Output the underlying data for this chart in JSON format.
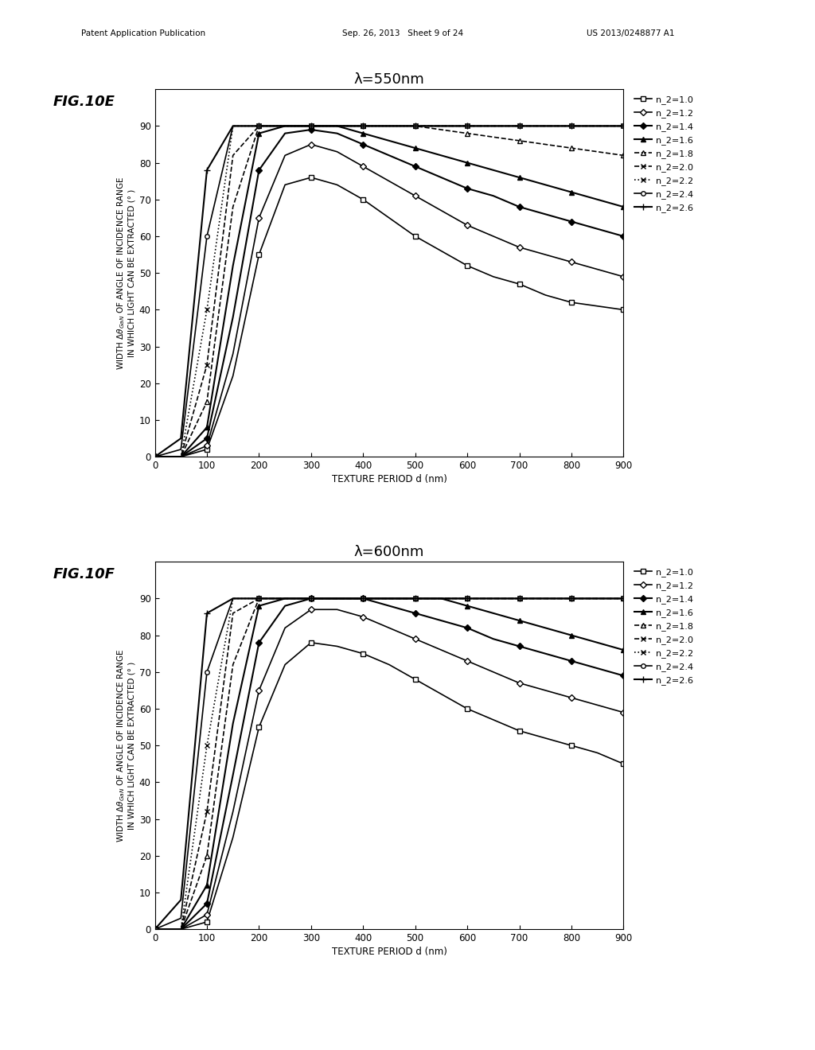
{
  "fig_label_E": "FIG.10E",
  "fig_label_F": "FIG.10F",
  "title_E": "λ=550nm",
  "title_F": "λ=600nm",
  "xlabel": "TEXTURE PERIOD d (nm)",
  "ylabel": "WIDTH ΔθGaN OF ANGLE OF INCIDENCE RANGE\nIN WHICH LIGHT CAN BE EXTRACTED (° )",
  "xlim": [
    0,
    900
  ],
  "ylim": [
    0,
    100
  ],
  "yticks": [
    0,
    10,
    20,
    30,
    40,
    50,
    60,
    70,
    80,
    90
  ],
  "xticks": [
    0,
    100,
    200,
    300,
    400,
    500,
    600,
    700,
    800,
    900
  ],
  "legend_labels": [
    "n_2=1.0",
    "n_2=1.2",
    "n_2=1.4",
    "n_2=1.6",
    "n_2=1.8",
    "n_2=2.0",
    "n_2=2.2",
    "n_2=2.4",
    "n_2=2.6"
  ],
  "header_left": "Patent Application Publication",
  "header_mid": "Sep. 26, 2013   Sheet 9 of 24",
  "header_right": "US 2013/0248877 A1",
  "x_points": [
    0,
    50,
    100,
    150,
    200,
    250,
    300,
    350,
    400,
    450,
    500,
    550,
    600,
    650,
    700,
    750,
    800,
    850,
    900
  ],
  "series_E": {
    "n10": [
      0,
      0,
      2,
      22,
      55,
      74,
      76,
      74,
      70,
      65,
      60,
      56,
      52,
      49,
      47,
      44,
      42,
      41,
      40
    ],
    "n12": [
      0,
      0,
      3,
      28,
      65,
      82,
      85,
      83,
      79,
      75,
      71,
      67,
      63,
      60,
      57,
      55,
      53,
      51,
      49
    ],
    "n14": [
      0,
      0,
      5,
      38,
      78,
      88,
      89,
      88,
      85,
      82,
      79,
      76,
      73,
      71,
      68,
      66,
      64,
      62,
      60
    ],
    "n16": [
      0,
      0,
      8,
      52,
      88,
      90,
      90,
      90,
      88,
      86,
      84,
      82,
      80,
      78,
      76,
      74,
      72,
      70,
      68
    ],
    "n18": [
      0,
      0,
      15,
      68,
      90,
      90,
      90,
      90,
      90,
      90,
      90,
      89,
      88,
      87,
      86,
      85,
      84,
      83,
      82
    ],
    "n20": [
      0,
      0,
      25,
      82,
      90,
      90,
      90,
      90,
      90,
      90,
      90,
      90,
      90,
      90,
      90,
      90,
      90,
      90,
      90
    ],
    "n22": [
      0,
      0,
      40,
      90,
      90,
      90,
      90,
      90,
      90,
      90,
      90,
      90,
      90,
      90,
      90,
      90,
      90,
      90,
      90
    ],
    "n24": [
      0,
      2,
      60,
      90,
      90,
      90,
      90,
      90,
      90,
      90,
      90,
      90,
      90,
      90,
      90,
      90,
      90,
      90,
      90
    ],
    "n26": [
      0,
      5,
      78,
      90,
      90,
      90,
      90,
      90,
      90,
      90,
      90,
      90,
      90,
      90,
      90,
      90,
      90,
      90,
      90
    ]
  },
  "series_F": {
    "n10": [
      0,
      0,
      2,
      25,
      55,
      72,
      78,
      77,
      75,
      72,
      68,
      64,
      60,
      57,
      54,
      52,
      50,
      48,
      45
    ],
    "n12": [
      0,
      0,
      4,
      32,
      65,
      82,
      87,
      87,
      85,
      82,
      79,
      76,
      73,
      70,
      67,
      65,
      63,
      61,
      59
    ],
    "n14": [
      0,
      0,
      7,
      42,
      78,
      88,
      90,
      90,
      90,
      88,
      86,
      84,
      82,
      79,
      77,
      75,
      73,
      71,
      69
    ],
    "n16": [
      0,
      0,
      12,
      56,
      88,
      90,
      90,
      90,
      90,
      90,
      90,
      90,
      88,
      86,
      84,
      82,
      80,
      78,
      76
    ],
    "n18": [
      0,
      0,
      20,
      72,
      90,
      90,
      90,
      90,
      90,
      90,
      90,
      90,
      90,
      90,
      90,
      90,
      90,
      90,
      90
    ],
    "n20": [
      0,
      0,
      32,
      86,
      90,
      90,
      90,
      90,
      90,
      90,
      90,
      90,
      90,
      90,
      90,
      90,
      90,
      90,
      90
    ],
    "n22": [
      0,
      0,
      50,
      90,
      90,
      90,
      90,
      90,
      90,
      90,
      90,
      90,
      90,
      90,
      90,
      90,
      90,
      90,
      90
    ],
    "n24": [
      0,
      3,
      70,
      90,
      90,
      90,
      90,
      90,
      90,
      90,
      90,
      90,
      90,
      90,
      90,
      90,
      90,
      90,
      90
    ],
    "n26": [
      0,
      8,
      86,
      90,
      90,
      90,
      90,
      90,
      90,
      90,
      90,
      90,
      90,
      90,
      90,
      90,
      90,
      90,
      90
    ]
  }
}
